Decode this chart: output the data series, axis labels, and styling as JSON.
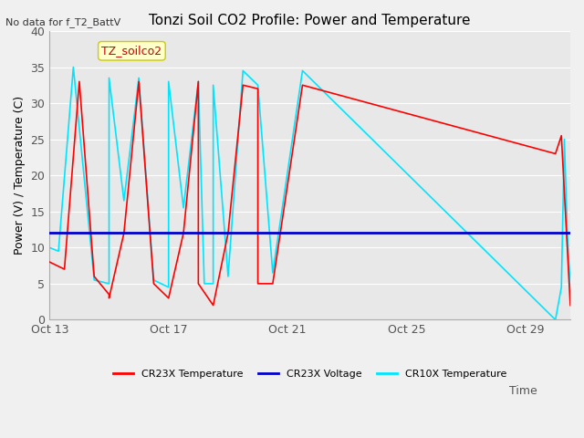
{
  "title": "Tonzi Soil CO2 Profile: Power and Temperature",
  "subtitle": "No data for f_T2_BattV",
  "ylabel": "Power (V) / Temperature (C)",
  "xlabel": "Time",
  "ylim": [
    0,
    40
  ],
  "annotation": "TZ_soilco2",
  "background_color": "#e8e8e8",
  "plot_bg_color": "#e8e8e8",
  "xtick_labels": [
    "Oct 13",
    "Oct 17",
    "Oct 21",
    "Oct 25",
    "Oct 29"
  ],
  "xtick_positions": [
    0,
    4,
    8,
    12,
    16
  ],
  "legend": [
    {
      "label": "CR23X Temperature",
      "color": "#ff0000"
    },
    {
      "label": "CR23X Voltage",
      "color": "#0000ff"
    },
    {
      "label": "CR10X Temperature",
      "color": "#00ffff"
    }
  ],
  "cr23x_temp": {
    "x": [
      0,
      0.5,
      1.0,
      1.5,
      2.0,
      2.0,
      2.5,
      3.0,
      3.5,
      4.0,
      4.0,
      4.5,
      5.0,
      5.0,
      5.5,
      5.5,
      6.0,
      6.5,
      7.0,
      7.0,
      7.5,
      8.5,
      17.0,
      17.2,
      17.5
    ],
    "y": [
      8.0,
      7.0,
      33.0,
      6.0,
      3.5,
      3.0,
      12.0,
      33.0,
      5.0,
      3.0,
      3.0,
      12.0,
      33.0,
      5.0,
      2.0,
      2.0,
      12.0,
      32.5,
      32.0,
      5.0,
      5.0,
      32.5,
      23.0,
      25.5,
      2.0
    ]
  },
  "cr23x_voltage": {
    "x": [
      0,
      17.5
    ],
    "y": [
      12.0,
      12.0
    ]
  },
  "cr10x_temp": {
    "x": [
      0,
      0.3,
      0.8,
      1.5,
      2.0,
      2.0,
      2.5,
      3.0,
      3.5,
      4.0,
      4.0,
      4.5,
      5.0,
      5.2,
      5.5,
      5.5,
      6.0,
      6.5,
      7.0,
      7.5,
      8.5,
      17.0,
      17.2,
      17.3,
      17.4,
      17.5
    ],
    "y": [
      10.0,
      9.5,
      35.0,
      5.5,
      5.0,
      33.5,
      16.5,
      33.5,
      5.5,
      4.5,
      33.0,
      15.5,
      33.0,
      5.0,
      5.0,
      32.5,
      6.0,
      34.5,
      32.5,
      6.5,
      34.5,
      0.0,
      4.5,
      25.0,
      12.0,
      4.5
    ]
  }
}
